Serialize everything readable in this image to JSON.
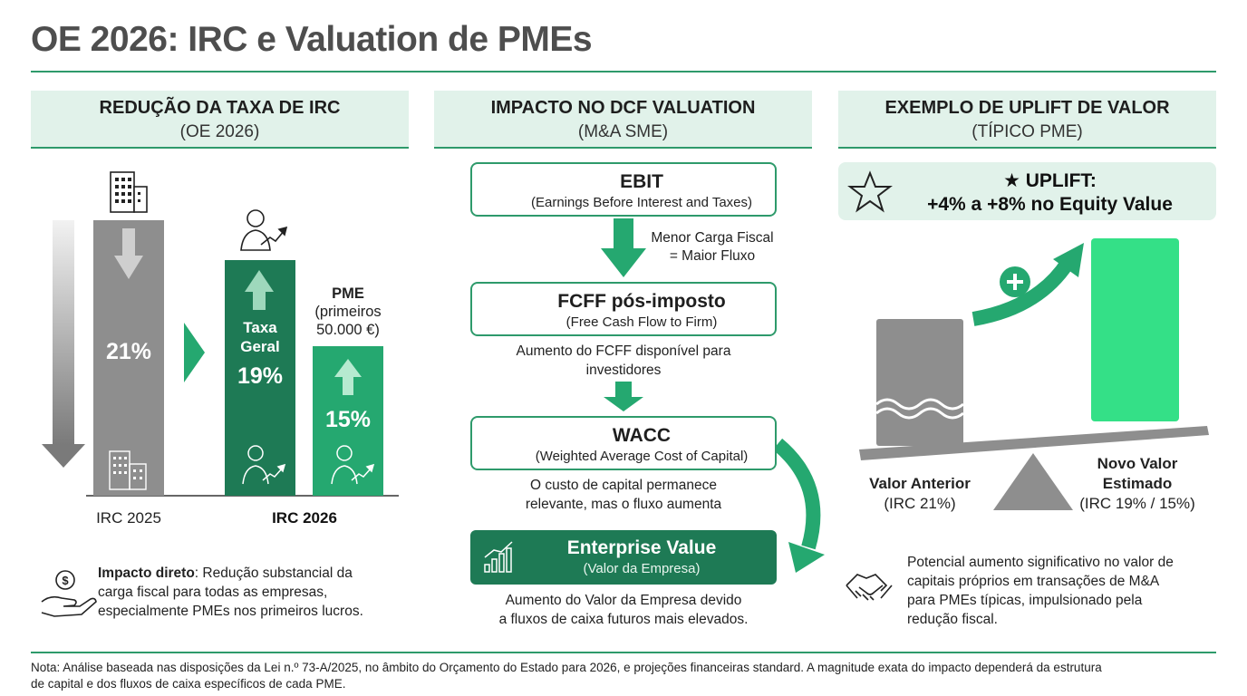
{
  "title": "OE 2026: IRC e Valuation de PMEs",
  "panel1": {
    "heading": "REDUÇÃO DA TAXA DE IRC",
    "subheading": "(OE 2026)",
    "bar_2025_value": "21%",
    "bar_geral_label_1": "Taxa",
    "bar_geral_label_2": "Geral",
    "bar_geral_value": "19%",
    "pme_label_1": "PME",
    "pme_label_2": "(primeiros",
    "pme_label_3": "50.000 €)",
    "bar_pme_value": "15%",
    "axis_2025": "IRC 2025",
    "axis_2026": "IRC 2026",
    "impact_bold": "Impacto direto",
    "impact_line1": ": Redução substancial da",
    "impact_line2": "carga fiscal para todas as empresas,",
    "impact_line3": "especialmente PMEs nos primeiros lucros."
  },
  "panel2": {
    "heading": "IMPACTO NO DCF VALUATION",
    "subheading": "(M&A SME)",
    "ebit_title": "EBIT",
    "ebit_sub": "(Earnings Before Interest and Taxes)",
    "arrow1_line1": "Menor Carga Fiscal",
    "arrow1_line2": "= Maior Fluxo",
    "fcff_title": "FCFF pós-imposto",
    "fcff_sub": "(Free Cash Flow to Firm)",
    "fcff_note1": "Aumento do FCFF disponível para",
    "fcff_note2": "investidores",
    "wacc_title": "WACC",
    "wacc_sub": "(Weighted Average Cost of Capital)",
    "wacc_note1": "O custo de capital permanece",
    "wacc_note2": "relevante, mas o fluxo aumenta",
    "ev_title": "Enterprise Value",
    "ev_sub": "(Valor da Empresa)",
    "ev_note1": "Aumento do Valor da Empresa devido",
    "ev_note2": "a fluxos de caixa futuros mais elevados."
  },
  "panel3": {
    "heading": "EXEMPLO DE UPLIFT DE VALOR",
    "subheading": "(TÍPICO PME)",
    "uplift_line1": "★ UPLIFT:",
    "uplift_line2": "+4% a +8% no Equity Value",
    "before_label": "Valor Anterior",
    "before_sub": "(IRC 21%)",
    "after_label_1": "Novo Valor",
    "after_label_2": "Estimado",
    "after_sub": "(IRC 19% / 15%)",
    "desc_line1": "Potencial aumento significativo no valor de",
    "desc_line2": "capitais próprios em transações de M&A",
    "desc_line3": "para PMEs típicas, impulsionado pela",
    "desc_line4": "redução fiscal."
  },
  "note_line1": "Nota: Análise baseada nas disposições da Lei n.º 73-A/2025, no âmbito do Orçamento do Estado para 2026, e projeções financeiras standard. A magnitude exata do impacto dependerá da estrutura",
  "note_line2": "de capital e dos fluxos de caixa específicos de cada PME.",
  "colors": {
    "dark_green": "#1e7a55",
    "mid_green": "#2e9a6b",
    "light_green": "#25b87a",
    "bright_green": "#34e087",
    "grey": "#8a8a8a",
    "pale_green": "#e1f2ea"
  }
}
